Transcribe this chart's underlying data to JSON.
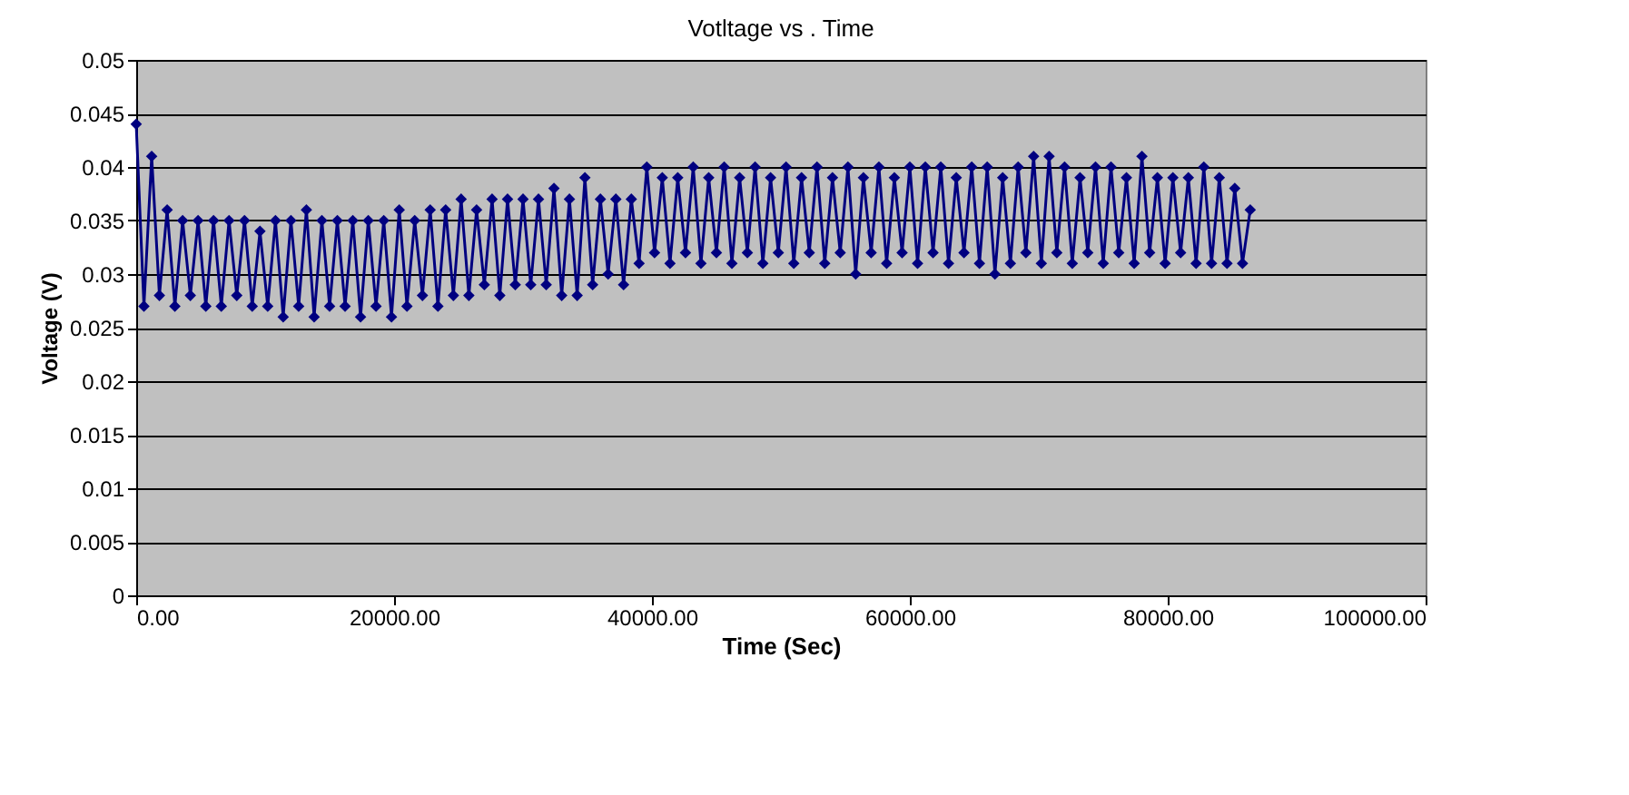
{
  "chart_data": {
    "type": "line",
    "title": "Votltage vs . Time",
    "xlabel": "Time (Sec)",
    "ylabel": "Voltage (V)",
    "xlim": [
      0,
      100000
    ],
    "ylim": [
      0,
      0.05
    ],
    "xticks": [
      {
        "value": 0,
        "label": "0.00"
      },
      {
        "value": 20000,
        "label": "20000.00"
      },
      {
        "value": 40000,
        "label": "40000.00"
      },
      {
        "value": 60000,
        "label": "60000.00"
      },
      {
        "value": 80000,
        "label": "80000.00"
      },
      {
        "value": 100000,
        "label": "100000.00"
      }
    ],
    "yticks": [
      0,
      0.005,
      0.01,
      0.015,
      0.02,
      0.025,
      0.03,
      0.035,
      0.04,
      0.045,
      0.05
    ],
    "grid": "y",
    "marker": "diamond",
    "line_style": "solid",
    "series": [
      {
        "color": "#000080",
        "x": [
          0,
          600,
          1200,
          1800,
          2400,
          3000,
          3600,
          4200,
          4800,
          5400,
          6000,
          6600,
          7200,
          7800,
          8400,
          9000,
          9600,
          10200,
          10800,
          11400,
          12000,
          12600,
          13200,
          13800,
          14400,
          15000,
          15600,
          16200,
          16800,
          17400,
          18000,
          18600,
          19200,
          19800,
          20400,
          21000,
          21600,
          22200,
          22800,
          23400,
          24000,
          24600,
          25200,
          25800,
          26400,
          27000,
          27600,
          28200,
          28800,
          29400,
          30000,
          30600,
          31200,
          31800,
          32400,
          33000,
          33600,
          34200,
          34800,
          35400,
          36000,
          36600,
          37200,
          37800,
          38400,
          39000,
          39600,
          40200,
          40800,
          41400,
          42000,
          42600,
          43200,
          43800,
          44400,
          45000,
          45600,
          46200,
          46800,
          47400,
          48000,
          48600,
          49200,
          49800,
          50400,
          51000,
          51600,
          52200,
          52800,
          53400,
          54000,
          54600,
          55200,
          55800,
          56400,
          57000,
          57600,
          58200,
          58800,
          59400,
          60000,
          60600,
          61200,
          61800,
          62400,
          63000,
          63600,
          64200,
          64800,
          65400,
          66000,
          66600,
          67200,
          67800,
          68400,
          69000,
          69600,
          70200,
          70800,
          71400,
          72000,
          72600,
          73200,
          73800,
          74400,
          75000,
          75600,
          76200,
          76800,
          77400,
          78000,
          78600,
          79200,
          79800,
          80400,
          81000,
          81600,
          82200,
          82800,
          83400,
          84000,
          84600,
          85200,
          85800,
          86400
        ],
        "values": [
          0.044,
          0.027,
          0.041,
          0.028,
          0.036,
          0.027,
          0.035,
          0.028,
          0.035,
          0.027,
          0.035,
          0.027,
          0.035,
          0.028,
          0.035,
          0.027,
          0.034,
          0.027,
          0.035,
          0.026,
          0.035,
          0.027,
          0.036,
          0.026,
          0.035,
          0.027,
          0.035,
          0.027,
          0.035,
          0.026,
          0.035,
          0.027,
          0.035,
          0.026,
          0.036,
          0.027,
          0.035,
          0.028,
          0.036,
          0.027,
          0.036,
          0.028,
          0.037,
          0.028,
          0.036,
          0.029,
          0.037,
          0.028,
          0.037,
          0.029,
          0.037,
          0.029,
          0.037,
          0.029,
          0.038,
          0.028,
          0.037,
          0.028,
          0.039,
          0.029,
          0.037,
          0.03,
          0.037,
          0.029,
          0.037,
          0.031,
          0.04,
          0.032,
          0.039,
          0.031,
          0.039,
          0.032,
          0.04,
          0.031,
          0.039,
          0.032,
          0.04,
          0.031,
          0.039,
          0.032,
          0.04,
          0.031,
          0.039,
          0.032,
          0.04,
          0.031,
          0.039,
          0.032,
          0.04,
          0.031,
          0.039,
          0.032,
          0.04,
          0.03,
          0.039,
          0.032,
          0.04,
          0.031,
          0.039,
          0.032,
          0.04,
          0.031,
          0.04,
          0.032,
          0.04,
          0.031,
          0.039,
          0.032,
          0.04,
          0.031,
          0.04,
          0.03,
          0.039,
          0.031,
          0.04,
          0.032,
          0.041,
          0.031,
          0.041,
          0.032,
          0.04,
          0.031,
          0.039,
          0.032,
          0.04,
          0.031,
          0.04,
          0.032,
          0.039,
          0.031,
          0.041,
          0.032,
          0.039,
          0.031,
          0.039,
          0.032,
          0.039,
          0.031,
          0.04,
          0.031,
          0.039,
          0.031,
          0.038,
          0.031,
          0.036
        ]
      }
    ]
  }
}
